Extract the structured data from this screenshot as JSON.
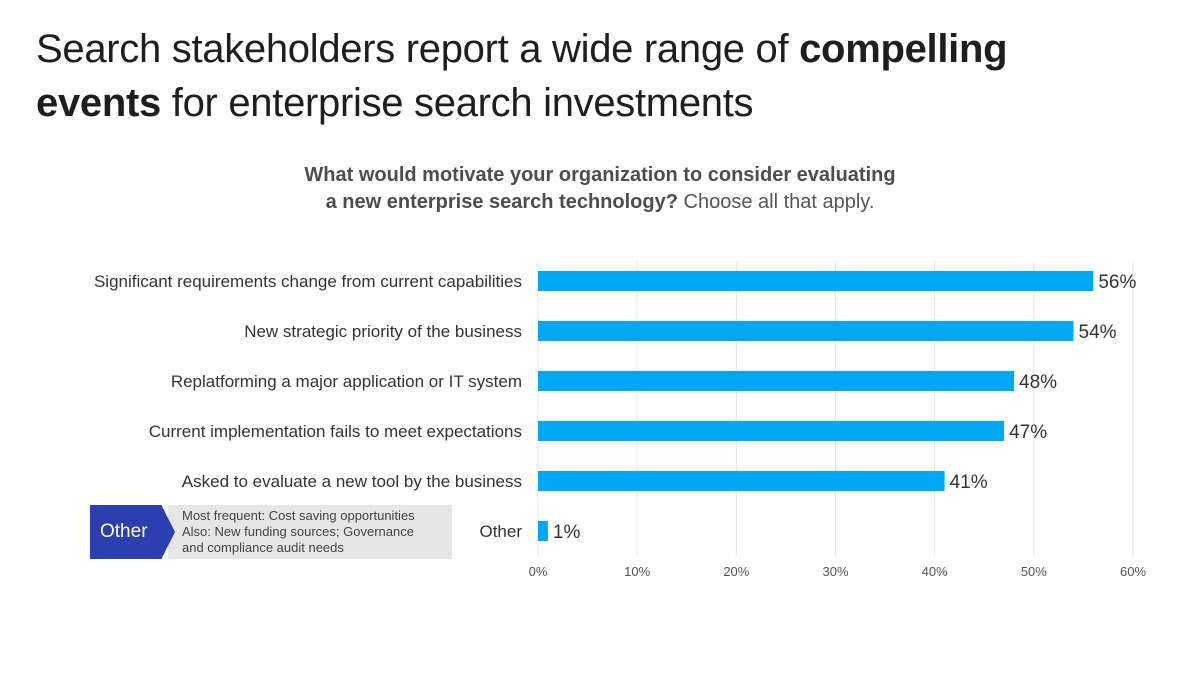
{
  "title": {
    "part1": "Search stakeholders report a wide range of ",
    "bold1": "compelling",
    "bold2": "events",
    "part2": " for enterprise search investments"
  },
  "question": {
    "bold_line1": "What would motivate your organization to consider evaluating",
    "bold_line2": "a new enterprise search technology?",
    "normal": " Choose all that apply."
  },
  "callout": {
    "tag": "Other",
    "line1": "Most frequent:  Cost saving opportunities",
    "line2": "Also:  New funding sources; Governance",
    "line3": "and compliance audit needs"
  },
  "chart_data": {
    "type": "bar",
    "orientation": "horizontal",
    "categories": [
      "Significant requirements change from current capabilities",
      "New strategic priority of the business",
      "Replatforming a major application or IT system",
      "Current implementation fails to meet expectations",
      "Asked to evaluate a new tool by the business",
      "Other"
    ],
    "values": [
      56,
      54,
      48,
      47,
      41,
      1
    ],
    "value_labels": [
      "56%",
      "54%",
      "48%",
      "47%",
      "41%",
      "1%"
    ],
    "xlim": [
      0,
      60
    ],
    "xticks": [
      "0%",
      "10%",
      "20%",
      "30%",
      "40%",
      "50%",
      "60%"
    ],
    "grid": "vertical",
    "bar_color": "#00a8f3",
    "tick_color": "#555555"
  }
}
